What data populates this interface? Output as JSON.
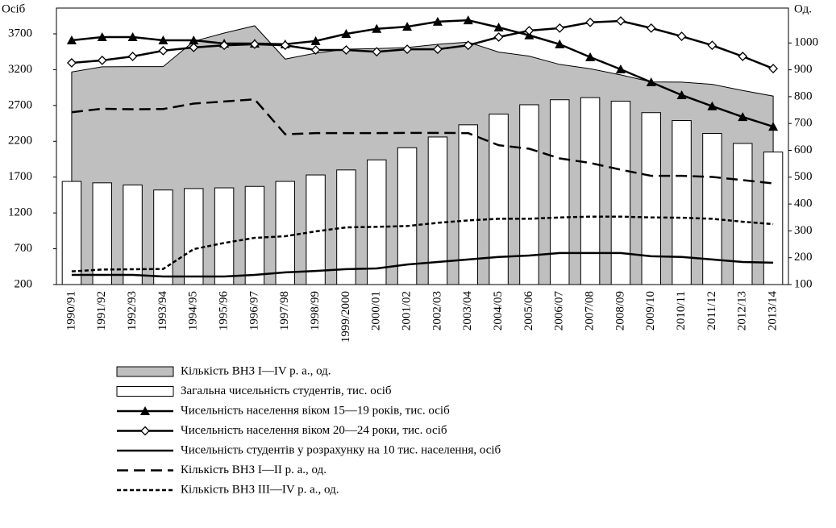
{
  "chart_data": {
    "type": "combo",
    "y_label": "Осіб",
    "y2_label": "Од.",
    "categories": [
      "1990/91",
      "1991/92",
      "1992/93",
      "1993/94",
      "1994/95",
      "1995/96",
      "1996/97",
      "1997/98",
      "1998/99",
      "1999/2000",
      "2000/01",
      "2001/02",
      "2002/03",
      "2003/04",
      "2004/05",
      "2005/06",
      "2006/07",
      "2007/08",
      "2008/09",
      "2009/10",
      "2010/11",
      "2011/12",
      "2012/13",
      "2013/14"
    ],
    "ylim": [
      200,
      4060
    ],
    "yticks": [
      200,
      700,
      1200,
      1700,
      2200,
      2700,
      3200,
      3700
    ],
    "y2lim": [
      100,
      1130
    ],
    "y2ticks": [
      100,
      200,
      300,
      400,
      500,
      600,
      700,
      800,
      900,
      1000
    ],
    "series": [
      {
        "name": "Кількість ВНЗ I—IV р. а., од.",
        "type": "area",
        "axis": "y2",
        "color": "#bfbfbf",
        "values": [
          892,
          911,
          912,
          912,
          1006,
          1037,
          1064,
          940,
          962,
          977,
          979,
          983,
          995,
          1003,
          966,
          951,
          920,
          904,
          881,
          855,
          854,
          846,
          823,
          802
        ]
      },
      {
        "name": "Загальна чисельність студентів, тис. осіб",
        "type": "bar",
        "axis": "y",
        "color": "#ffffff",
        "values": [
          1640,
          1620,
          1590,
          1520,
          1540,
          1550,
          1570,
          1640,
          1730,
          1800,
          1940,
          2110,
          2260,
          2430,
          2580,
          2710,
          2780,
          2810,
          2760,
          2600,
          2490,
          2310,
          2170,
          2050
        ]
      },
      {
        "name": "Чисельність населення віком 15—19 років, тис. осіб",
        "type": "line",
        "axis": "y",
        "color": "#000000",
        "marker": "triangle",
        "dash": "solid",
        "values": [
          3610,
          3655,
          3655,
          3610,
          3610,
          3565,
          3565,
          3555,
          3600,
          3700,
          3770,
          3800,
          3870,
          3890,
          3790,
          3680,
          3555,
          3375,
          3205,
          3025,
          2845,
          2690,
          2540,
          2405
        ]
      },
      {
        "name": "Чисельність населення віком 20—24 роки, тис. осіб",
        "type": "line",
        "axis": "y",
        "color": "#000000",
        "marker": "diamond",
        "dash": "solid",
        "values": [
          3295,
          3330,
          3385,
          3465,
          3510,
          3540,
          3555,
          3540,
          3475,
          3475,
          3450,
          3485,
          3485,
          3540,
          3655,
          3745,
          3780,
          3860,
          3880,
          3780,
          3665,
          3540,
          3385,
          3215
        ]
      },
      {
        "name": "Чисельність студентів у розрахунку на 10 тис. населення, осіб",
        "type": "line",
        "axis": "y",
        "color": "#000000",
        "dash": "solid",
        "values": [
          335,
          335,
          335,
          313,
          313,
          313,
          335,
          370,
          390,
          415,
          425,
          480,
          515,
          550,
          585,
          605,
          640,
          640,
          640,
          595,
          585,
          550,
          515,
          505
        ]
      },
      {
        "name": "Кількість ВНЗ I—II р. а., од.",
        "type": "line",
        "axis": "y2",
        "color": "#000000",
        "dash": "long",
        "values": [
          742,
          755,
          753,
          754,
          774,
          782,
          790,
          660,
          664,
          664,
          664,
          665,
          665,
          664,
          619,
          606,
          570,
          553,
          528,
          505,
          505,
          501,
          489,
          477
        ]
      },
      {
        "name": "Кількість ВНЗ III—IV р. а., од.",
        "type": "line",
        "axis": "y2",
        "color": "#000000",
        "dash": "short",
        "values": [
          149,
          156,
          157,
          158,
          232,
          255,
          274,
          280,
          298,
          313,
          315,
          318,
          330,
          339,
          345,
          345,
          350,
          353,
          353,
          350,
          349,
          345,
          334,
          325
        ]
      }
    ]
  }
}
